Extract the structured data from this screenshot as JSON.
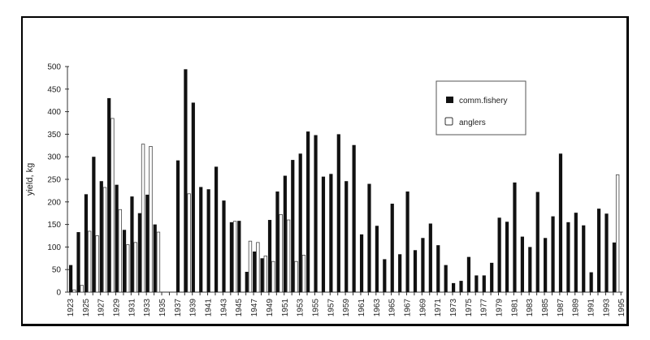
{
  "chart_data": {
    "type": "bar",
    "title": "",
    "xlabel": "",
    "ylabel": "yield, kg",
    "ylim": [
      0,
      500
    ],
    "yticks": [
      0,
      50,
      100,
      150,
      200,
      250,
      300,
      350,
      400,
      450,
      500
    ],
    "grid": false,
    "legend_position": "upper right",
    "x_tick_labels": [
      "1923",
      "1925",
      "1927",
      "1929",
      "1931",
      "1933",
      "1935",
      "1937",
      "1939",
      "1941",
      "1943",
      "1945",
      "1947",
      "1949",
      "1951",
      "1953",
      "1955",
      "1957",
      "1959",
      "1961",
      "1963",
      "1965",
      "1967",
      "1969",
      "1971",
      "1973",
      "1975",
      "1977",
      "1979",
      "1981",
      "1983",
      "1985",
      "1987",
      "1989",
      "1991",
      "1993",
      "1995"
    ],
    "categories": [
      1923,
      1924,
      1925,
      1926,
      1927,
      1928,
      1929,
      1930,
      1931,
      1932,
      1933,
      1934,
      1935,
      1936,
      1937,
      1938,
      1939,
      1940,
      1941,
      1942,
      1943,
      1944,
      1945,
      1946,
      1947,
      1948,
      1949,
      1950,
      1951,
      1952,
      1953,
      1954,
      1955,
      1956,
      1957,
      1958,
      1959,
      1960,
      1961,
      1962,
      1963,
      1964,
      1965,
      1966,
      1967,
      1968,
      1969,
      1970,
      1971,
      1972,
      1973,
      1974,
      1975,
      1976,
      1977,
      1978,
      1979,
      1980,
      1981,
      1982,
      1983,
      1984,
      1985,
      1986,
      1987,
      1988,
      1989,
      1990,
      1991,
      1992,
      1993,
      1994,
      1995
    ],
    "series": [
      {
        "name": "comm.fishery",
        "style": "filled-black",
        "values": [
          60,
          133,
          217,
          300,
          246,
          430,
          238,
          138,
          212,
          175,
          216,
          150,
          0,
          0,
          292,
          494,
          420,
          233,
          228,
          278,
          203,
          155,
          158,
          45,
          90,
          75,
          160,
          223,
          258,
          293,
          307,
          356,
          348,
          256,
          262,
          350,
          246,
          326,
          128,
          240,
          147,
          73,
          196,
          84,
          223,
          93,
          120,
          152,
          104,
          60,
          20,
          25,
          78,
          37,
          37,
          65,
          165,
          156,
          243,
          123,
          100,
          222,
          120,
          168,
          307,
          155,
          176,
          148,
          44,
          185,
          174,
          110,
          0
        ]
      },
      {
        "name": "anglers",
        "style": "hollow-white",
        "values": [
          5,
          15,
          135,
          125,
          232,
          385,
          183,
          105,
          110,
          328,
          323,
          133,
          0,
          0,
          0,
          218,
          0,
          0,
          0,
          0,
          0,
          157,
          0,
          113,
          110,
          80,
          68,
          172,
          160,
          68,
          82,
          0,
          0,
          0,
          0,
          0,
          0,
          0,
          0,
          0,
          0,
          0,
          0,
          0,
          0,
          0,
          0,
          0,
          0,
          0,
          0,
          0,
          0,
          0,
          0,
          0,
          0,
          0,
          0,
          0,
          0,
          0,
          0,
          0,
          0,
          0,
          0,
          0,
          0,
          0,
          0,
          260,
          0
        ]
      }
    ]
  },
  "legend": {
    "items": [
      {
        "label": "comm.fishery",
        "swatch": "filled"
      },
      {
        "label": "anglers",
        "swatch": "hollow"
      }
    ]
  },
  "colors": {
    "comm_fishery": "#111111",
    "anglers": "#ffffff",
    "axis": "#333333",
    "border": "#000000"
  }
}
